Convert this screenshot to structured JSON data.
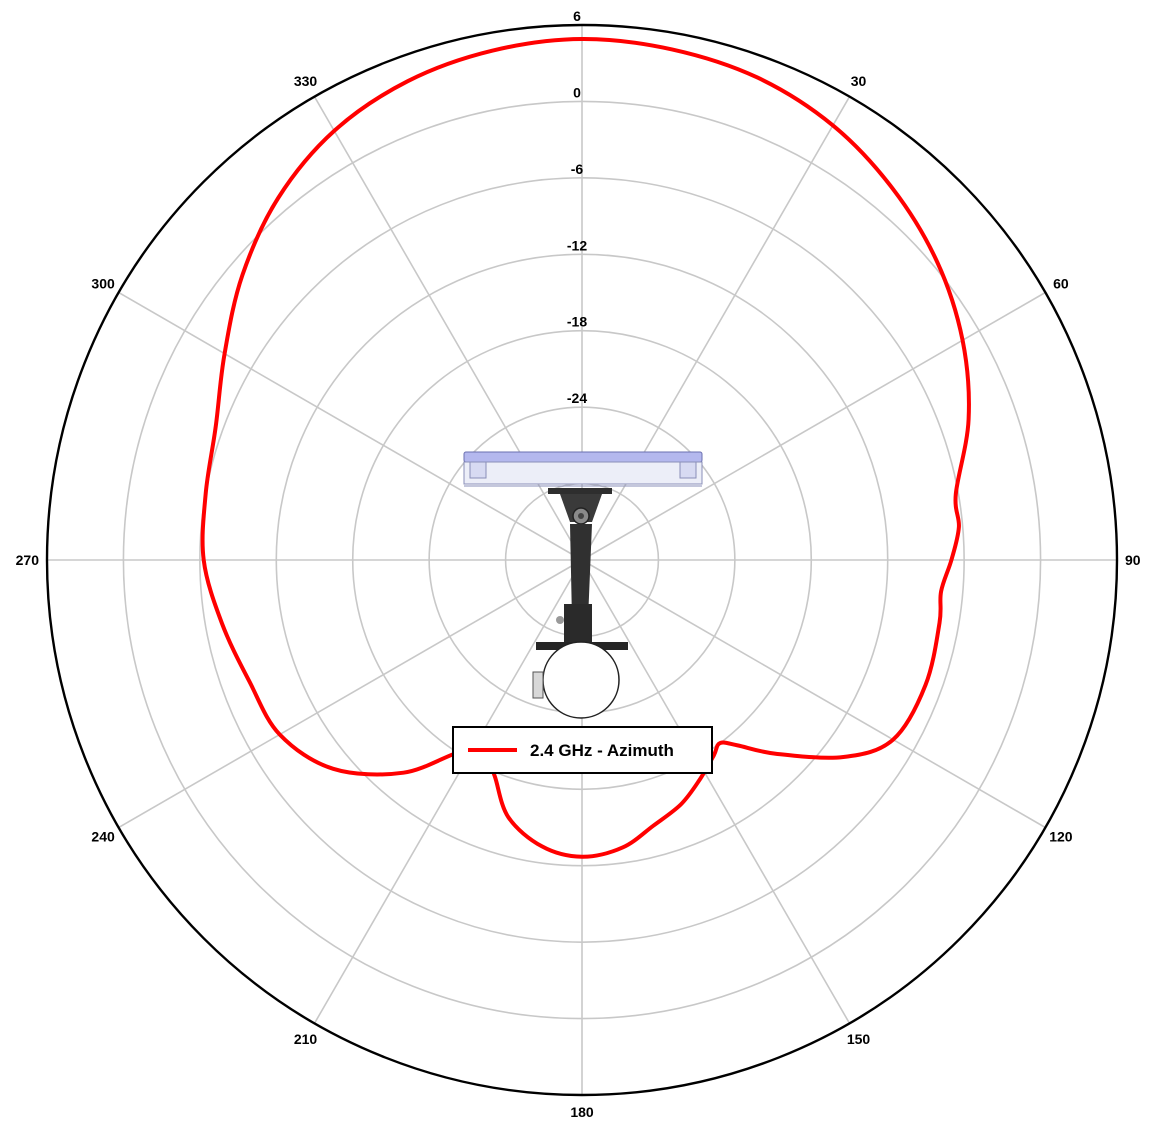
{
  "chart_data": {
    "type": "polar-line",
    "angle_direction": "clockwise",
    "zero_angle_at": "top",
    "angle_ticks": [
      0,
      30,
      60,
      90,
      120,
      150,
      180,
      210,
      240,
      270,
      300,
      330
    ],
    "angle_tick_labels": [
      "",
      "30",
      "60",
      "90",
      "120",
      "150",
      "180",
      "210",
      "240",
      "270",
      "300",
      "330"
    ],
    "radial_ticks": [
      -30,
      -24,
      -18,
      -12,
      -6,
      0,
      6
    ],
    "radial_tick_labels": [
      "",
      "-24",
      "-18",
      "-12",
      "-6",
      "0",
      "6"
    ],
    "rlim": [
      -36,
      6
    ],
    "grid": true,
    "legend_position": "center-bottom",
    "series": [
      {
        "name": "2.4 GHz - Azimuth",
        "color": "#ff0000",
        "points": [
          {
            "angle": 0,
            "value": 4.9
          },
          {
            "angle": 10,
            "value": 4.7
          },
          {
            "angle": 20,
            "value": 4.3
          },
          {
            "angle": 30,
            "value": 3.4
          },
          {
            "angle": 40,
            "value": 2.0
          },
          {
            "angle": 50,
            "value": 0.4
          },
          {
            "angle": 60,
            "value": -1.5
          },
          {
            "angle": 70,
            "value": -3.7
          },
          {
            "angle": 80,
            "value": -6.2
          },
          {
            "angle": 85,
            "value": -6.3
          },
          {
            "angle": 90,
            "value": -7.0
          },
          {
            "angle": 95,
            "value": -7.7
          },
          {
            "angle": 100,
            "value": -7.5
          },
          {
            "angle": 110,
            "value": -7.3
          },
          {
            "angle": 120,
            "value": -7.8
          },
          {
            "angle": 127,
            "value": -10.3
          },
          {
            "angle": 135,
            "value": -14.5
          },
          {
            "angle": 140,
            "value": -17.0
          },
          {
            "angle": 143,
            "value": -18.0
          },
          {
            "angle": 146,
            "value": -17.5
          },
          {
            "angle": 152,
            "value": -16.4
          },
          {
            "angle": 158,
            "value": -15.3
          },
          {
            "angle": 165,
            "value": -14.4
          },
          {
            "angle": 172,
            "value": -13.2
          },
          {
            "angle": 180,
            "value": -12.7
          },
          {
            "angle": 188,
            "value": -13.3
          },
          {
            "angle": 196,
            "value": -15.0
          },
          {
            "angle": 202,
            "value": -17.7
          },
          {
            "angle": 206,
            "value": -18.8
          },
          {
            "angle": 212,
            "value": -18.3
          },
          {
            "angle": 220,
            "value": -14.2
          },
          {
            "angle": 230,
            "value": -10.5
          },
          {
            "angle": 240,
            "value": -8.6
          },
          {
            "angle": 250,
            "value": -8.2
          },
          {
            "angle": 260,
            "value": -7.3
          },
          {
            "angle": 270,
            "value": -6.3
          },
          {
            "angle": 280,
            "value": -6.0
          },
          {
            "angle": 290,
            "value": -5.4
          },
          {
            "angle": 300,
            "value": -3.6
          },
          {
            "angle": 310,
            "value": -1.2
          },
          {
            "angle": 320,
            "value": 1.1
          },
          {
            "angle": 330,
            "value": 2.9
          },
          {
            "angle": 340,
            "value": 4.0
          },
          {
            "angle": 350,
            "value": 4.6
          }
        ]
      }
    ],
    "legend": [
      {
        "label": "2.4 GHz - Azimuth",
        "color": "#ff0000"
      }
    ]
  }
}
